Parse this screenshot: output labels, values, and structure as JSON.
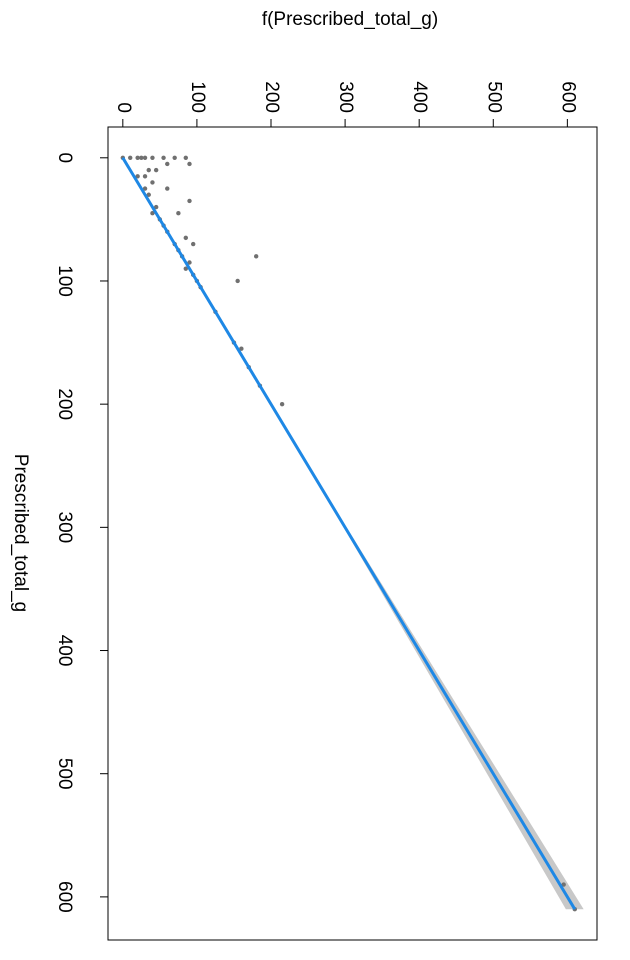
{
  "chart_data": {
    "type": "scatter",
    "xlabel": "Prescribed_total_g",
    "ylabel": "f(Prescribed_total_g)",
    "xlim": [
      -25,
      635
    ],
    "ylim": [
      -20,
      640
    ],
    "xticks": [
      0,
      100,
      200,
      300,
      400,
      500,
      600
    ],
    "yticks": [
      0,
      100,
      200,
      300,
      400,
      500,
      600
    ],
    "point_color": "#707070",
    "x": [
      0,
      0,
      0,
      0,
      0,
      0,
      0,
      0,
      0,
      5,
      5,
      10,
      10,
      15,
      15,
      20,
      25,
      25,
      30,
      35,
      40,
      45,
      45,
      50,
      55,
      60,
      65,
      70,
      70,
      75,
      80,
      80,
      85,
      90,
      95,
      100,
      100,
      105,
      125,
      150,
      155,
      170,
      185,
      200,
      590,
      610
    ],
    "y": [
      0,
      10,
      20,
      25,
      30,
      40,
      55,
      70,
      85,
      60,
      90,
      35,
      45,
      20,
      30,
      40,
      30,
      60,
      35,
      90,
      45,
      40,
      75,
      50,
      55,
      60,
      85,
      70,
      95,
      75,
      80,
      180,
      90,
      85,
      95,
      155,
      100,
      105,
      125,
      150,
      160,
      170,
      185,
      215,
      595,
      610
    ],
    "fit": {
      "color": "#1e88e5",
      "band_color": "#c8c8c8",
      "x": [
        0,
        300,
        610
      ],
      "y": [
        0,
        300,
        610
      ],
      "ci_lower": [
        -2,
        298,
        598
      ],
      "ci_upper": [
        2,
        302,
        622
      ]
    }
  }
}
